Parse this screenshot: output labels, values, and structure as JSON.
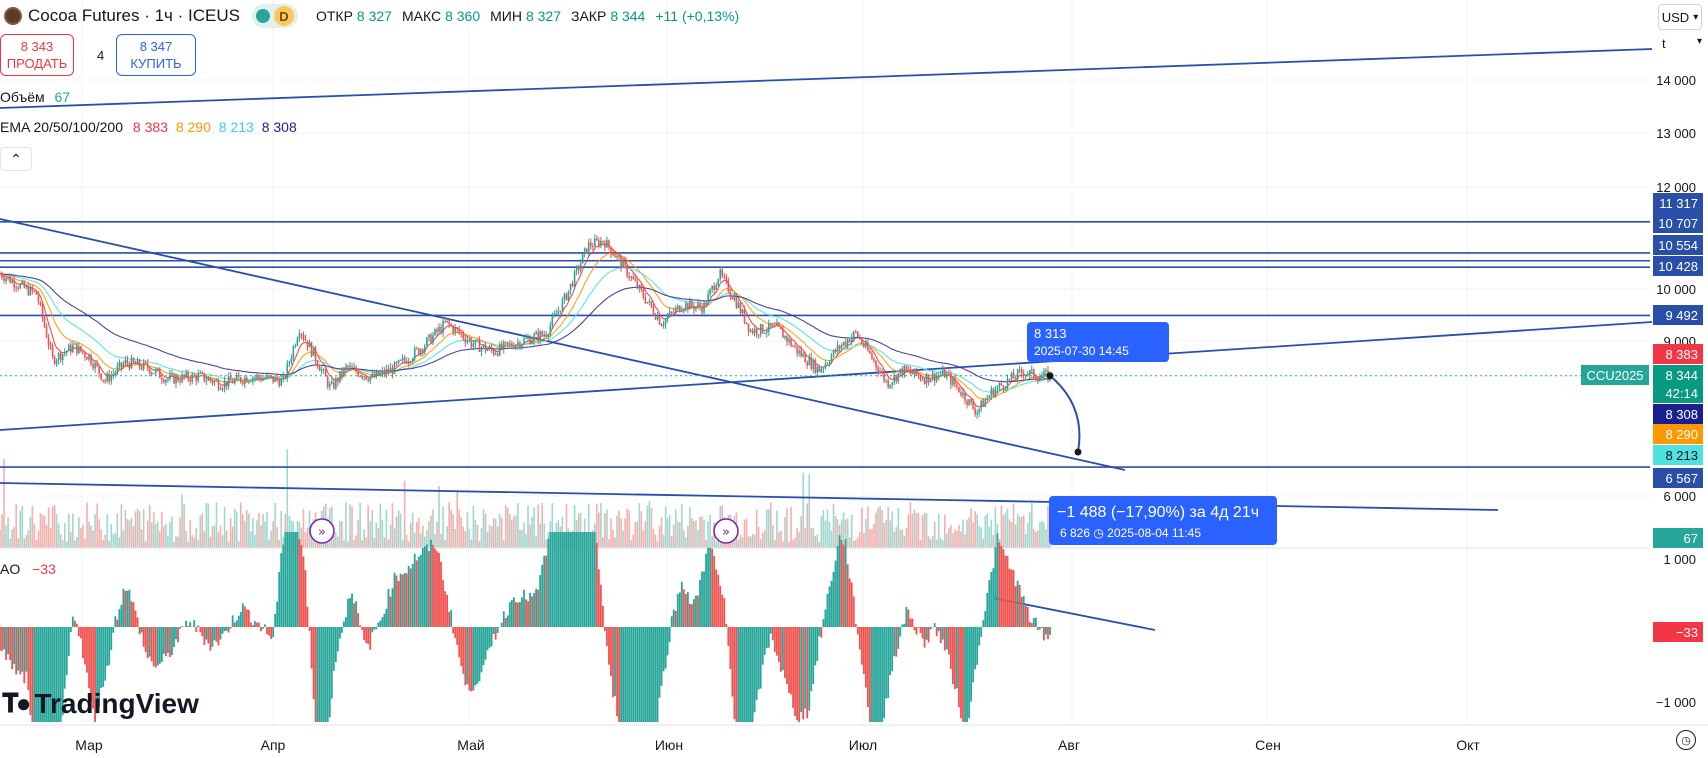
{
  "header": {
    "title": "Cocoa Futures · 1ч · ICEUS",
    "status_badge": "D",
    "ohlc": [
      {
        "k": "ОТКР",
        "v": "8 327"
      },
      {
        "k": "МАКС",
        "v": "8 360"
      },
      {
        "k": "МИН",
        "v": "8 327"
      },
      {
        "k": "ЗАКР",
        "v": "8 344"
      }
    ],
    "change": "+11 (+0,13%)"
  },
  "trade": {
    "sell_price": "8 343",
    "sell_label": "ПРОДАТЬ",
    "spread": "4",
    "buy_price": "8 347",
    "buy_label": "КУПИТЬ"
  },
  "legend": {
    "volume_label": "Объём",
    "volume_value": "67",
    "ema_label": "EMA 20/50/100/200",
    "ema_values": [
      "8 383",
      "8 290",
      "8 213",
      "8 308"
    ],
    "ao_label": "AO",
    "ao_value": "−33"
  },
  "toolbar": {
    "currency": "USD",
    "unit": "t",
    "collapse_icon": "chevron-up-icon"
  },
  "measure": {
    "start_price": "8 313",
    "start_time": "2025-07-30 14:45",
    "result": "−1 488 (−17,90%) за 4д 21ч",
    "end_price": "6 826",
    "end_time": "2025-08-04  11:45"
  },
  "symbol_tag": "CCU2025",
  "axis_labels": [
    {
      "text": "11 317",
      "bg": "#2a4fa8",
      "fg": "#ffffff"
    },
    {
      "text": "10 707",
      "bg": "#2a4fa8",
      "fg": "#ffffff"
    },
    {
      "text": "10 554",
      "bg": "#2a4fa8",
      "fg": "#ffffff"
    },
    {
      "text": "10 428",
      "bg": "#2a4fa8",
      "fg": "#ffffff"
    },
    {
      "text": "9 492",
      "bg": "#2a4fa8",
      "fg": "#ffffff"
    },
    {
      "text": "8 383",
      "bg": "#f23645",
      "fg": "#ffffff"
    },
    {
      "text": "8 344",
      "bg": "#089981",
      "fg": "#ffffff"
    },
    {
      "text": "42:14",
      "bg": "#089981",
      "fg": "#ffffff"
    },
    {
      "text": "8 308",
      "bg": "#1a1f8f",
      "fg": "#ffffff"
    },
    {
      "text": "8 290",
      "bg": "#ff9800",
      "fg": "#ffffff"
    },
    {
      "text": "8 213",
      "bg": "#4fe0e0",
      "fg": "#131722"
    },
    {
      "text": "6 567",
      "bg": "#2a4fa8",
      "fg": "#ffffff"
    },
    {
      "text": "67",
      "bg": "#26a69a",
      "fg": "#ffffff"
    },
    {
      "text": "−33",
      "bg": "#f23645",
      "fg": "#ffffff"
    }
  ],
  "brand": "TradingView",
  "colors": {
    "up": "#26a69a",
    "down": "#ef5350",
    "line": "#2a4fa8",
    "ema20": "#f23645",
    "ema50": "#ff9800",
    "ema100": "#4fe0e0",
    "ema200": "#3b2f8f"
  },
  "chart_data": {
    "type": "line",
    "symbol": "CCU2025",
    "price_axis": {
      "ticks": [
        "14 000",
        "13 000",
        "12 000",
        "10 000",
        "9 000",
        "6 000"
      ],
      "range": [
        5800,
        14800
      ]
    },
    "time_axis": {
      "ticks": [
        "Мар",
        "Апр",
        "Май",
        "Июн",
        "Июл",
        "Авг",
        "Сен",
        "Окт"
      ]
    },
    "price_path": [
      {
        "t": 0.0,
        "p": 10300
      },
      {
        "t": 0.02,
        "p": 10050
      },
      {
        "t": 0.035,
        "p": 9900
      },
      {
        "t": 0.05,
        "p": 8650
      },
      {
        "t": 0.07,
        "p": 8900
      },
      {
        "t": 0.085,
        "p": 8700
      },
      {
        "t": 0.1,
        "p": 8250
      },
      {
        "t": 0.12,
        "p": 8600
      },
      {
        "t": 0.14,
        "p": 8500
      },
      {
        "t": 0.16,
        "p": 8280
      },
      {
        "t": 0.19,
        "p": 8330
      },
      {
        "t": 0.21,
        "p": 8190
      },
      {
        "t": 0.24,
        "p": 8330
      },
      {
        "t": 0.27,
        "p": 8250
      },
      {
        "t": 0.285,
        "p": 9250
      },
      {
        "t": 0.3,
        "p": 8700
      },
      {
        "t": 0.315,
        "p": 8100
      },
      {
        "t": 0.33,
        "p": 8500
      },
      {
        "t": 0.355,
        "p": 8300
      },
      {
        "t": 0.375,
        "p": 8480
      },
      {
        "t": 0.4,
        "p": 8850
      },
      {
        "t": 0.425,
        "p": 9350
      },
      {
        "t": 0.45,
        "p": 8950
      },
      {
        "t": 0.47,
        "p": 8800
      },
      {
        "t": 0.49,
        "p": 8950
      },
      {
        "t": 0.52,
        "p": 9150
      },
      {
        "t": 0.54,
        "p": 9900
      },
      {
        "t": 0.56,
        "p": 10850
      },
      {
        "t": 0.575,
        "p": 10950
      },
      {
        "t": 0.59,
        "p": 10550
      },
      {
        "t": 0.61,
        "p": 9950
      },
      {
        "t": 0.63,
        "p": 9350
      },
      {
        "t": 0.65,
        "p": 9700
      },
      {
        "t": 0.67,
        "p": 9650
      },
      {
        "t": 0.685,
        "p": 10300
      },
      {
        "t": 0.7,
        "p": 9800
      },
      {
        "t": 0.715,
        "p": 9200
      },
      {
        "t": 0.74,
        "p": 9250
      },
      {
        "t": 0.76,
        "p": 8800
      },
      {
        "t": 0.78,
        "p": 8450
      },
      {
        "t": 0.8,
        "p": 8900
      },
      {
        "t": 0.815,
        "p": 9150
      },
      {
        "t": 0.83,
        "p": 8700
      },
      {
        "t": 0.845,
        "p": 8200
      },
      {
        "t": 0.86,
        "p": 8450
      },
      {
        "t": 0.88,
        "p": 8300
      },
      {
        "t": 0.9,
        "p": 8380
      },
      {
        "t": 0.915,
        "p": 8050
      },
      {
        "t": 0.93,
        "p": 7650
      },
      {
        "t": 0.945,
        "p": 8050
      },
      {
        "t": 0.96,
        "p": 8250
      },
      {
        "t": 0.975,
        "p": 8420
      },
      {
        "t": 0.99,
        "p": 8330
      },
      {
        "t": 1.0,
        "p": 8344
      }
    ],
    "horizontal_levels": [
      11317,
      10707,
      10554,
      10428,
      9492,
      6567
    ],
    "ema": {
      "20": 8383,
      "50": 8290,
      "100": 8213,
      "200": 8308
    },
    "ao": {
      "range": [
        -1000,
        1000
      ],
      "ticks": [
        "1 000",
        "−1 000"
      ],
      "last": -33
    },
    "volume_last": 67
  }
}
